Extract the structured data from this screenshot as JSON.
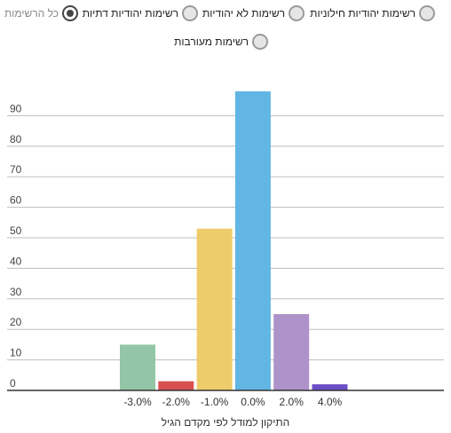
{
  "filters": [
    {
      "label": "כל הרשימות",
      "selected": true
    },
    {
      "label": "רשימות יהודיות דתיות",
      "selected": false
    },
    {
      "label": "רשימות לא יהודיות",
      "selected": false
    },
    {
      "label": "רשימות יהודיות חילוניות",
      "selected": false
    },
    {
      "label": "רשימות מעורבות",
      "selected": false
    }
  ],
  "chart_data": {
    "type": "bar",
    "categories": [
      "-3.0%",
      "-2.0%",
      "-1.0%",
      "0.0%",
      "2.0%",
      "4.0%"
    ],
    "values": [
      15,
      3,
      53,
      98,
      25,
      2
    ],
    "colors": [
      "#93c6a6",
      "#d95050",
      "#efcc6b",
      "#61b6e4",
      "#ae93ca",
      "#6a4fc6"
    ],
    "xlabel": "התיקון למודל לפי מקדם הגיל",
    "ylabel": "",
    "ylim": [
      0,
      100
    ],
    "yticks": [
      0,
      10,
      20,
      30,
      40,
      50,
      60,
      70,
      80,
      90
    ],
    "grid": true
  }
}
